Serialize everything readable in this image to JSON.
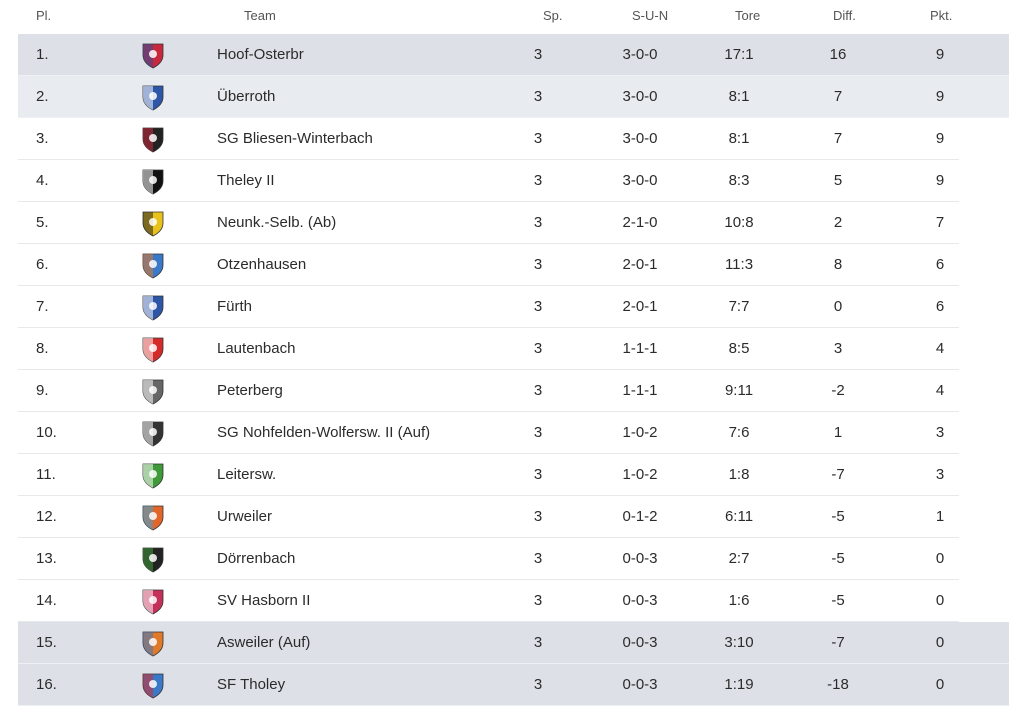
{
  "header": {
    "pl": "Pl.",
    "team": "Team",
    "sp": "Sp.",
    "sun": "S-U-N",
    "tore": "Tore",
    "diff": "Diff.",
    "pkt": "Pkt."
  },
  "rows": [
    {
      "pl": "1.",
      "team": "Hoof-Osterbr",
      "sp": "3",
      "sun": "3-0-0",
      "tore": "17:1",
      "diff": "16",
      "pkt": "9",
      "logo": "hoof-osterbr-crest-icon",
      "color": "#c8283c",
      "color2": "#2f4f9a",
      "highlight": "hl"
    },
    {
      "pl": "2.",
      "team": "Überroth",
      "sp": "3",
      "sun": "3-0-0",
      "tore": "8:1",
      "diff": "7",
      "pkt": "9",
      "logo": "ueberroth-crest-icon",
      "color": "#2d56a8",
      "color2": "#ffffff",
      "highlight": "hl2"
    },
    {
      "pl": "3.",
      "team": "SG Bliesen-Winterbach",
      "sp": "3",
      "sun": "3-0-0",
      "tore": "8:1",
      "diff": "7",
      "pkt": "9",
      "logo": "bliesen-winterbach-crest-icon",
      "color": "#222222",
      "color2": "#c8283c",
      "highlight": ""
    },
    {
      "pl": "4.",
      "team": "Theley II",
      "sp": "3",
      "sun": "3-0-0",
      "tore": "8:3",
      "diff": "5",
      "pkt": "9",
      "logo": "theley-crest-icon",
      "color": "#111111",
      "color2": "#ffffff",
      "highlight": ""
    },
    {
      "pl": "5.",
      "team": "Neunk.-Selb. (Ab)",
      "sp": "3",
      "sun": "2-1-0",
      "tore": "10:8",
      "diff": "2",
      "pkt": "7",
      "logo": "neunk-selb-crest-icon",
      "color": "#e8c21a",
      "color2": "#222222",
      "highlight": ""
    },
    {
      "pl": "6.",
      "team": "Otzenhausen",
      "sp": "3",
      "sun": "2-0-1",
      "tore": "11:3",
      "diff": "8",
      "pkt": "6",
      "logo": "otzenhausen-crest-icon",
      "color": "#3a78c8",
      "color2": "#e07a2a",
      "highlight": ""
    },
    {
      "pl": "7.",
      "team": "Fürth",
      "sp": "3",
      "sun": "2-0-1",
      "tore": "7:7",
      "diff": "0",
      "pkt": "6",
      "logo": "fuerth-crest-icon",
      "color": "#2d56a8",
      "color2": "#ffffff",
      "highlight": ""
    },
    {
      "pl": "8.",
      "team": "Lautenbach",
      "sp": "3",
      "sun": "1-1-1",
      "tore": "8:5",
      "diff": "3",
      "pkt": "4",
      "logo": "lautenbach-crest-icon",
      "color": "#d42a2a",
      "color2": "#ffffff",
      "highlight": ""
    },
    {
      "pl": "9.",
      "team": "Peterberg",
      "sp": "3",
      "sun": "1-1-1",
      "tore": "9:11",
      "diff": "-2",
      "pkt": "4",
      "logo": "peterberg-crest-icon",
      "color": "#666666",
      "color2": "#ffffff",
      "highlight": ""
    },
    {
      "pl": "10.",
      "team": "SG Nohfelden-Wolfersw. II (Auf)",
      "sp": "3",
      "sun": "1-0-2",
      "tore": "7:6",
      "diff": "1",
      "pkt": "3",
      "logo": "nohfelden-wolfersw-crest-icon",
      "color": "#333333",
      "color2": "#ffffff",
      "highlight": ""
    },
    {
      "pl": "11.",
      "team": "Leitersw.",
      "sp": "3",
      "sun": "1-0-2",
      "tore": "1:8",
      "diff": "-7",
      "pkt": "3",
      "logo": "leitersw-crest-icon",
      "color": "#3f9a3a",
      "color2": "#ffffff",
      "highlight": ""
    },
    {
      "pl": "12.",
      "team": "Urweiler",
      "sp": "3",
      "sun": "0-1-2",
      "tore": "6:11",
      "diff": "-5",
      "pkt": "1",
      "logo": "urweiler-crest-icon",
      "color": "#e2652a",
      "color2": "#3aa7d8",
      "highlight": ""
    },
    {
      "pl": "13.",
      "team": "Dörrenbach",
      "sp": "3",
      "sun": "0-0-3",
      "tore": "2:7",
      "diff": "-5",
      "pkt": "0",
      "logo": "doerrenbach-sfd-crest-icon",
      "color": "#222222",
      "color2": "#3f9a3a",
      "highlight": ""
    },
    {
      "pl": "14.",
      "team": "SV Hasborn II",
      "sp": "3",
      "sun": "0-0-3",
      "tore": "1:6",
      "diff": "-5",
      "pkt": "0",
      "logo": "hasborn-crest-icon",
      "color": "#c4305a",
      "color2": "#ffffff",
      "highlight": ""
    },
    {
      "pl": "15.",
      "team": "Asweiler (Auf)",
      "sp": "3",
      "sun": "0-0-3",
      "tore": "3:10",
      "diff": "-7",
      "pkt": "0",
      "logo": "asweiler-crest-icon",
      "color": "#e07a2a",
      "color2": "#3a78c8",
      "highlight": "hl"
    },
    {
      "pl": "16.",
      "team": "SF Tholey",
      "sp": "3",
      "sun": "0-0-3",
      "tore": "1:19",
      "diff": "-18",
      "pkt": "0",
      "logo": "sf-tholey-crest-icon",
      "color": "#3a78c8",
      "color2": "#d42a2a",
      "highlight": "hl"
    }
  ]
}
